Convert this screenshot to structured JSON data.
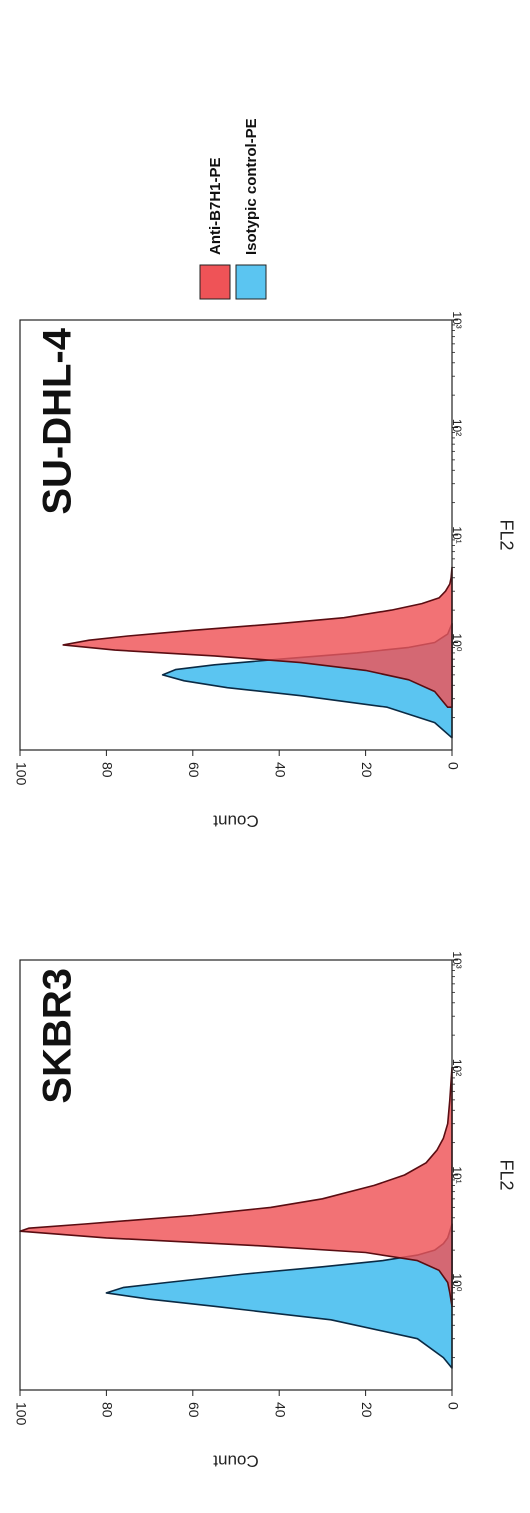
{
  "chart_data": [
    {
      "type": "area",
      "title": "SKBR3",
      "xlabel": "FL2",
      "ylabel": "Count",
      "x_scale": "log",
      "xlim": [
        0.1,
        1000
      ],
      "ylim": [
        0,
        100
      ],
      "x_ticks": [
        {
          "value": 1,
          "label": "10⁰"
        },
        {
          "value": 10,
          "label": "10¹"
        },
        {
          "value": 100,
          "label": "10²"
        },
        {
          "value": 1000,
          "label": "10³"
        }
      ],
      "y_ticks": [
        0,
        20,
        40,
        60,
        80,
        100
      ],
      "series": [
        {
          "name": "Isotypic control-PE",
          "color": "#5bc5f1",
          "x": [
            0.16,
            0.2,
            0.3,
            0.45,
            0.6,
            0.7,
            0.8,
            0.9,
            1.0,
            1.2,
            1.4,
            1.6,
            1.8,
            2.0,
            2.3,
            2.6,
            3.0,
            3.5
          ],
          "y": [
            0,
            2,
            8,
            28,
            55,
            70,
            80,
            76,
            66,
            48,
            30,
            16,
            8,
            4,
            2,
            1,
            0.5,
            0
          ]
        },
        {
          "name": "Anti-B7H1-PE",
          "color": "#ef5357",
          "x": [
            0.6,
            0.8,
            1.0,
            1.3,
            1.6,
            1.9,
            2.2,
            2.6,
            3.0,
            3.2,
            3.5,
            4.2,
            5,
            6,
            8,
            10,
            13,
            17,
            22,
            30,
            50,
            100
          ],
          "y": [
            0,
            0.5,
            1,
            3,
            8,
            20,
            45,
            80,
            100,
            98,
            85,
            60,
            42,
            30,
            18,
            11,
            6,
            3.5,
            2,
            1,
            0.5,
            0
          ]
        }
      ],
      "legend": "right"
    },
    {
      "type": "area",
      "title": "SU-DHL-4",
      "xlabel": "FL2",
      "ylabel": "Count",
      "x_scale": "log",
      "xlim": [
        0.1,
        1000
      ],
      "ylim": [
        0,
        100
      ],
      "x_ticks": [
        {
          "value": 1,
          "label": "10⁰"
        },
        {
          "value": 10,
          "label": "10¹"
        },
        {
          "value": 100,
          "label": "10²"
        },
        {
          "value": 1000,
          "label": "10³"
        }
      ],
      "y_ticks": [
        0,
        20,
        40,
        60,
        80,
        100
      ],
      "series": [
        {
          "name": "Isotypic control-PE",
          "color": "#5bc5f1",
          "x": [
            0.13,
            0.18,
            0.25,
            0.32,
            0.38,
            0.44,
            0.5,
            0.56,
            0.62,
            0.7,
            0.8,
            0.9,
            1.0,
            1.2,
            1.5
          ],
          "y": [
            0,
            4,
            15,
            35,
            52,
            62,
            67,
            64,
            55,
            40,
            22,
            10,
            4,
            1,
            0
          ]
        },
        {
          "name": "Anti-B7H1-PE",
          "color": "#ef5357",
          "x": [
            0.25,
            0.35,
            0.45,
            0.55,
            0.65,
            0.75,
            0.85,
            0.95,
            1.05,
            1.15,
            1.3,
            1.5,
            1.7,
            2.0,
            2.3,
            2.6,
            3.0,
            3.5,
            4.0,
            5.0
          ],
          "y": [
            1,
            4,
            10,
            20,
            35,
            55,
            78,
            90,
            84,
            75,
            60,
            40,
            25,
            14,
            7,
            3,
            1.5,
            0.5,
            0.2,
            0
          ]
        }
      ],
      "legend": "right"
    }
  ],
  "legend": {
    "items": [
      {
        "label": "Anti-B7H1-PE",
        "color": "#ef5357"
      },
      {
        "label": "Isotypic control-PE",
        "color": "#5bc5f1"
      }
    ]
  }
}
